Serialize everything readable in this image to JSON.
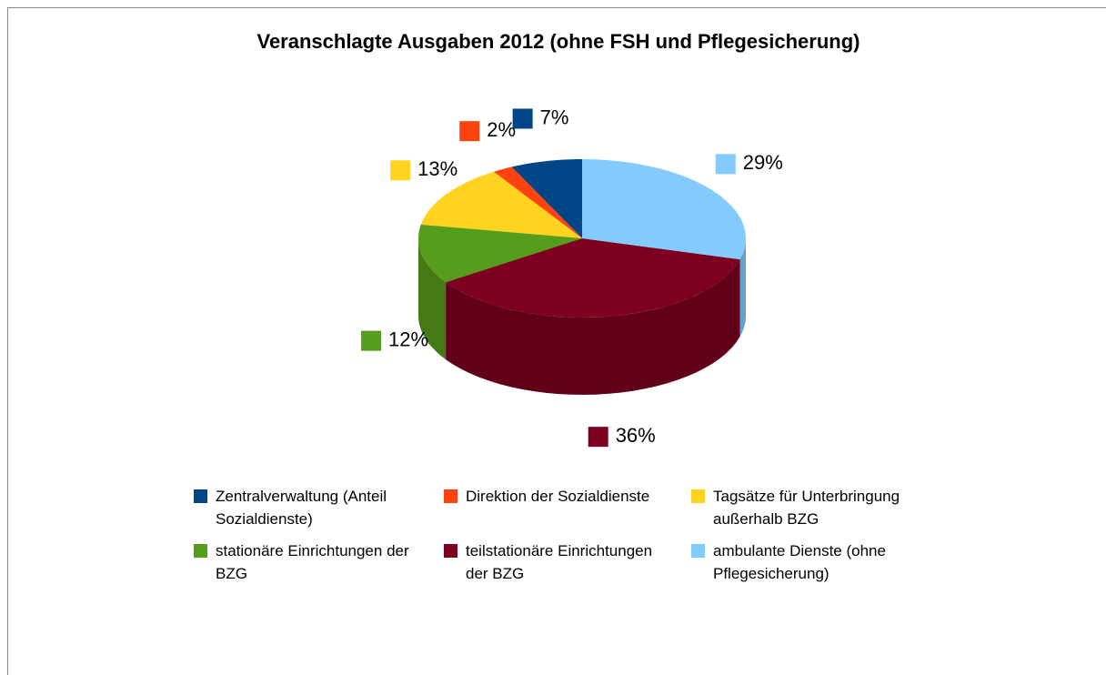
{
  "chart_data": {
    "type": "pie",
    "title": "Veranschlagte Ausgaben 2012 (ohne FSH und Pflegesicherung)",
    "categories": [
      "Zentralverwaltung (Anteil Sozialdienste)",
      "Direktion der Sozialdienste",
      "Tagsätze für Unterbringung außerhalb BZG",
      "stationäre Einrichtungen der BZG",
      "teilstationäre Einrichtungen der BZG",
      "ambulante Dienste (ohne Pflegesicherung)"
    ],
    "values": [
      7,
      2,
      13,
      12,
      36,
      29
    ],
    "value_labels": [
      "7%",
      "2%",
      "13%",
      "12%",
      "36%",
      "29%"
    ],
    "colors": [
      "#004586",
      "#ff420e",
      "#ffd320",
      "#579d1c",
      "#7e0021",
      "#83caff"
    ],
    "legend": "bottom"
  }
}
